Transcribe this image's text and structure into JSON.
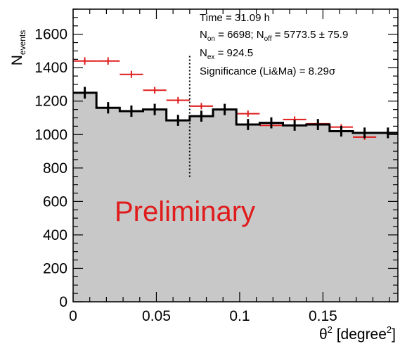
{
  "chart_data": {
    "type": "histogram",
    "xlabel_symbol": "θ",
    "xlabel_sup": "2",
    "xlabel_unit_open": " [degree",
    "xlabel_unit_sup": "2",
    "xlabel_unit_close": "]",
    "ylabel_main": "N",
    "ylabel_sub": "events",
    "xlim": [
      0,
      0.195
    ],
    "ylim": [
      0,
      1750
    ],
    "x_ticks": [
      "0",
      "0.05",
      "0.1",
      "0.15"
    ],
    "x_tick_values": [
      0,
      0.05,
      0.1,
      0.15
    ],
    "y_ticks": [
      "0",
      "200",
      "400",
      "600",
      "800",
      "1000",
      "1200",
      "1400",
      "1600"
    ],
    "y_tick_values": [
      0,
      200,
      400,
      600,
      800,
      1000,
      1200,
      1400,
      1600
    ],
    "bin_width": 0.014,
    "on_counts": [
      1250,
      1160,
      1140,
      1150,
      1085,
      1110,
      1150,
      1060,
      1070,
      1055,
      1060,
      1020,
      1010,
      1010
    ],
    "on_errors": [
      35,
      34,
      34,
      34,
      33,
      33,
      34,
      33,
      33,
      32,
      33,
      32,
      32,
      32
    ],
    "off_counts": [
      1440,
      1440,
      1360,
      1265,
      1205,
      1170,
      1150,
      1125,
      1055,
      1090,
      1065,
      1045,
      985,
      1010
    ],
    "off_errors": [
      22,
      22,
      21,
      20,
      20,
      19,
      19,
      19,
      18,
      19,
      18,
      18,
      17,
      18
    ],
    "series_colors": {
      "on": "#000000",
      "off": "#e01b1b",
      "fill": "#c8c8c8"
    },
    "cut_line_x": 0.07,
    "cut_line_top": 1470,
    "cut_line_bottom": 740
  },
  "annotations": {
    "time": "Time = 31.09 h",
    "non_main": "N",
    "non_sub": "on",
    "non_value": " = 6698; N",
    "noff_sub": "off",
    "noff_value": " = 5773.5 ± 75.9",
    "nex_main": "N",
    "nex_sub": "ex",
    "nex_value": " = 924.5",
    "significance": "Significance (Li&Ma) = 8.29σ",
    "watermark": "Preliminary"
  }
}
